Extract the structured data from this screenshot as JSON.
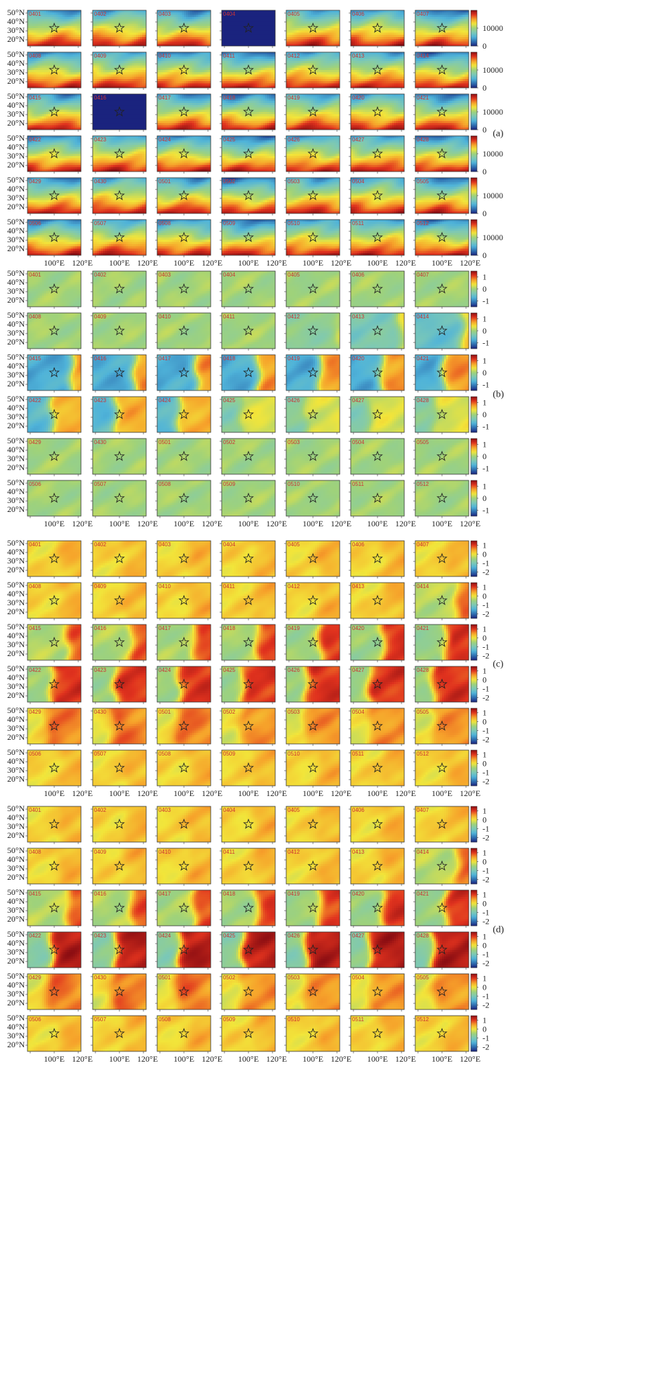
{
  "chart_data": [
    {
      "panel": "(a)",
      "type": "heatmap",
      "title": "",
      "dates": [
        "0401",
        "0402",
        "0403",
        "0404",
        "0405",
        "0406",
        "0407",
        "0408",
        "0409",
        "0410",
        "0411",
        "0412",
        "0413",
        "0414",
        "0415",
        "0416",
        "0417",
        "0418",
        "0419",
        "0420",
        "0421",
        "0422",
        "0423",
        "0424",
        "0425",
        "0426",
        "0427",
        "0428",
        "0429",
        "0430",
        "0501",
        "0502",
        "0503",
        "0504",
        "0505",
        "0506",
        "0507",
        "0508",
        "0509",
        "0510",
        "0511",
        "0512"
      ],
      "ylabels": [
        "50°N",
        "40°N",
        "30°N",
        "20°N"
      ],
      "xlabels": [
        "100°E",
        "120°E"
      ],
      "colorbar_ticks": [
        "10000",
        "0"
      ],
      "colorbar_range": [
        0,
        20000
      ],
      "marker": "star at 100°E, 30°N",
      "field_pattern": "high values (red) at southern latitudes, low values (blue) at northern latitudes",
      "uniform_panels": [
        "0404",
        "0416"
      ]
    },
    {
      "panel": "(b)",
      "type": "heatmap",
      "title": "",
      "dates": [
        "0401",
        "0402",
        "0403",
        "0404",
        "0405",
        "0406",
        "0407",
        "0408",
        "0409",
        "0410",
        "0411",
        "0412",
        "0413",
        "0414",
        "0415",
        "0416",
        "0417",
        "0418",
        "0419",
        "0420",
        "0421",
        "0422",
        "0423",
        "0424",
        "0425",
        "0426",
        "0427",
        "0428",
        "0429",
        "0430",
        "0501",
        "0502",
        "0503",
        "0504",
        "0505",
        "0506",
        "0507",
        "0508",
        "0509",
        "0510",
        "0511",
        "0512"
      ],
      "ylabels": [
        "50°N",
        "40°N",
        "30°N",
        "20°N"
      ],
      "xlabels": [
        "100°E",
        "120°E"
      ],
      "colorbar_ticks": [
        "1",
        "0",
        "-1"
      ],
      "colorbar_range": [
        -1.5,
        1.5
      ],
      "marker": "star at 100°E, 30°N",
      "field_pattern": "near-zero (green) except 0412–0424 with a west (negative, blue) / east (positive, red) dipole moving westward"
    },
    {
      "panel": "(c)",
      "type": "heatmap",
      "title": "",
      "dates": [
        "0401",
        "0402",
        "0403",
        "0404",
        "0405",
        "0406",
        "0407",
        "0408",
        "0409",
        "0410",
        "0411",
        "0412",
        "0413",
        "0414",
        "0415",
        "0416",
        "0417",
        "0418",
        "0419",
        "0420",
        "0421",
        "0422",
        "0423",
        "0424",
        "0425",
        "0426",
        "0427",
        "0428",
        "0429",
        "0430",
        "0501",
        "0502",
        "0503",
        "0504",
        "0505",
        "0506",
        "0507",
        "0508",
        "0509",
        "0510",
        "0511",
        "0512"
      ],
      "ylabels": [
        "50°N",
        "40°N",
        "30°N",
        "20°N"
      ],
      "xlabels": [
        "100°E",
        "120°E"
      ],
      "colorbar_ticks": [
        "1",
        "0",
        "-1",
        "-2"
      ],
      "colorbar_range": [
        -2.5,
        1.5
      ],
      "marker": "star at 100°E, 30°N",
      "field_pattern": "mostly near zero (yellow) with a strong east-positive / west-negative dipole around 0415–0428"
    },
    {
      "panel": "(d)",
      "type": "heatmap",
      "title": "",
      "dates": [
        "0401",
        "0402",
        "0403",
        "0404",
        "0405",
        "0406",
        "0407",
        "0408",
        "0409",
        "0410",
        "0411",
        "0412",
        "0413",
        "0414",
        "0415",
        "0416",
        "0417",
        "0418",
        "0419",
        "0420",
        "0421",
        "0422",
        "0423",
        "0424",
        "0425",
        "0426",
        "0427",
        "0428",
        "0429",
        "0430",
        "0501",
        "0502",
        "0503",
        "0504",
        "0505",
        "0506",
        "0507",
        "0508",
        "0509",
        "0510",
        "0511",
        "0512"
      ],
      "ylabels": [
        "50°N",
        "40°N",
        "30°N",
        "20°N"
      ],
      "xlabels": [
        "100°E",
        "120°E"
      ],
      "colorbar_ticks": [
        "1",
        "0",
        "-1",
        "-2"
      ],
      "colorbar_range": [
        -2.5,
        1.5
      ],
      "marker": "star at 100°E, 30°N",
      "field_pattern": "similar to (c); strongest dipole 0422–0428 with negative (blue) values in the west"
    }
  ],
  "colors": {
    "frame": "#333333",
    "date_label": "#cc3333",
    "star_stroke": "#222222",
    "colormap": [
      "#1a237e",
      "#2f6fb0",
      "#4fb3d9",
      "#7cc8b6",
      "#9fd27a",
      "#f2e53a",
      "#f6a02a",
      "#e0321e",
      "#8a0d12"
    ]
  }
}
